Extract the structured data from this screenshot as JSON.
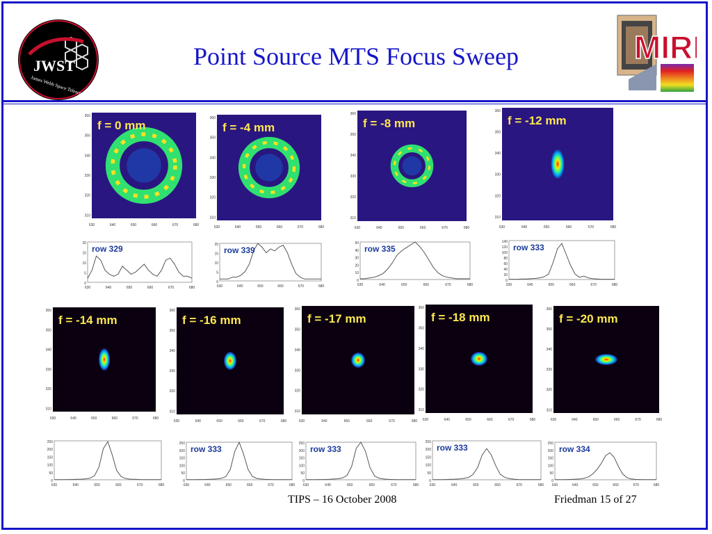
{
  "slide": {
    "title": "Point Source MTS Focus Sweep",
    "footer_left": "TIPS – 16 October 2008",
    "footer_right": "Friedman 15 of 27",
    "logo_left_text": "JWST",
    "logo_left_caption": "James Webb Space Telescope",
    "logo_right_text": "MIRI",
    "accent_color": "#1515c8"
  },
  "images": [
    {
      "label": "f = 0 mm",
      "shape": "ring-large"
    },
    {
      "label": "f = -4 mm",
      "shape": "ring-medium"
    },
    {
      "label": "f = -8 mm",
      "shape": "ring-small"
    },
    {
      "label": "f = -12 mm",
      "shape": "spot-elongated"
    },
    {
      "label": "f = -14 mm",
      "shape": "spot-vertical"
    },
    {
      "label": "f = -16 mm",
      "shape": "spot-small"
    },
    {
      "label": "f = -17 mm",
      "shape": "spot-compact"
    },
    {
      "label": "f = -18 mm",
      "shape": "spot-wide"
    },
    {
      "label": "f = -20 mm",
      "shape": "spot-horizontal"
    }
  ],
  "image_axis": {
    "x_ticks": [
      "630",
      "640",
      "650",
      "660",
      "670",
      "680"
    ],
    "y_ticks": [
      "360",
      "350",
      "340",
      "330",
      "320",
      "310"
    ]
  },
  "profiles": [
    {
      "label": "row 329",
      "y_ticks": [
        "20",
        "15",
        "10",
        "5",
        "0"
      ],
      "values": [
        2,
        6,
        13,
        11,
        6,
        4,
        3,
        4,
        8,
        6,
        4,
        5,
        7,
        9,
        6,
        4,
        3,
        6,
        11,
        12,
        9,
        5,
        3,
        3,
        2
      ]
    },
    {
      "label": "row 339",
      "y_ticks": [
        "20",
        "15",
        "10",
        "5",
        "0"
      ],
      "values": [
        1,
        1,
        1,
        2,
        2,
        3,
        5,
        9,
        16,
        20,
        18,
        15,
        17,
        16,
        18,
        19,
        15,
        9,
        4,
        2,
        1,
        1,
        1,
        1,
        1
      ]
    },
    {
      "label": "row 335",
      "y_ticks": [
        "50",
        "40",
        "30",
        "20",
        "10",
        "0"
      ],
      "values": [
        1,
        1,
        2,
        3,
        5,
        8,
        14,
        22,
        32,
        38,
        42,
        46,
        50,
        44,
        36,
        26,
        16,
        9,
        5,
        3,
        2,
        1,
        1,
        1,
        1
      ]
    },
    {
      "label": "row 333",
      "y_ticks": [
        "140",
        "120",
        "100",
        "80",
        "60",
        "40",
        "20",
        "0"
      ],
      "values": [
        1,
        1,
        1,
        2,
        2,
        3,
        4,
        6,
        10,
        20,
        60,
        110,
        130,
        90,
        50,
        20,
        8,
        12,
        6,
        3,
        2,
        1,
        1,
        1,
        1
      ]
    },
    {
      "label": "",
      "y_ticks": [
        "250",
        "200",
        "150",
        "100",
        "50",
        "0"
      ],
      "values": [
        1,
        1,
        1,
        2,
        2,
        3,
        4,
        6,
        10,
        25,
        80,
        200,
        245,
        160,
        60,
        20,
        8,
        4,
        3,
        2,
        1,
        1,
        1,
        1,
        1
      ]
    },
    {
      "label": "row 333",
      "y_ticks": [
        "250",
        "200",
        "150",
        "100",
        "50",
        "0"
      ],
      "values": [
        1,
        1,
        1,
        2,
        2,
        3,
        4,
        6,
        10,
        22,
        70,
        190,
        250,
        170,
        70,
        22,
        9,
        5,
        3,
        2,
        1,
        1,
        1,
        1,
        1
      ]
    },
    {
      "label": "row 333",
      "y_ticks": [
        "250",
        "200",
        "150",
        "100",
        "50",
        "0"
      ],
      "values": [
        1,
        1,
        1,
        2,
        2,
        3,
        5,
        7,
        12,
        30,
        90,
        210,
        255,
        190,
        80,
        25,
        10,
        5,
        3,
        2,
        1,
        1,
        1,
        1,
        1
      ]
    },
    {
      "label": "row 333",
      "y_ticks": [
        "250",
        "200",
        "150",
        "100",
        "50",
        "0"
      ],
      "values": [
        1,
        1,
        1,
        2,
        3,
        4,
        6,
        9,
        15,
        35,
        80,
        160,
        200,
        160,
        90,
        35,
        15,
        7,
        4,
        2,
        1,
        1,
        1,
        1,
        1
      ]
    },
    {
      "label": "row 334",
      "y_ticks": [
        "250",
        "200",
        "150",
        "100",
        "50",
        "0"
      ],
      "values": [
        1,
        1,
        1,
        2,
        3,
        4,
        6,
        10,
        20,
        40,
        70,
        110,
        160,
        180,
        150,
        90,
        40,
        15,
        6,
        3,
        2,
        1,
        1,
        1,
        1
      ]
    }
  ],
  "profile_axis": {
    "x_ticks": [
      "630",
      "640",
      "650",
      "660",
      "670",
      "680"
    ]
  }
}
